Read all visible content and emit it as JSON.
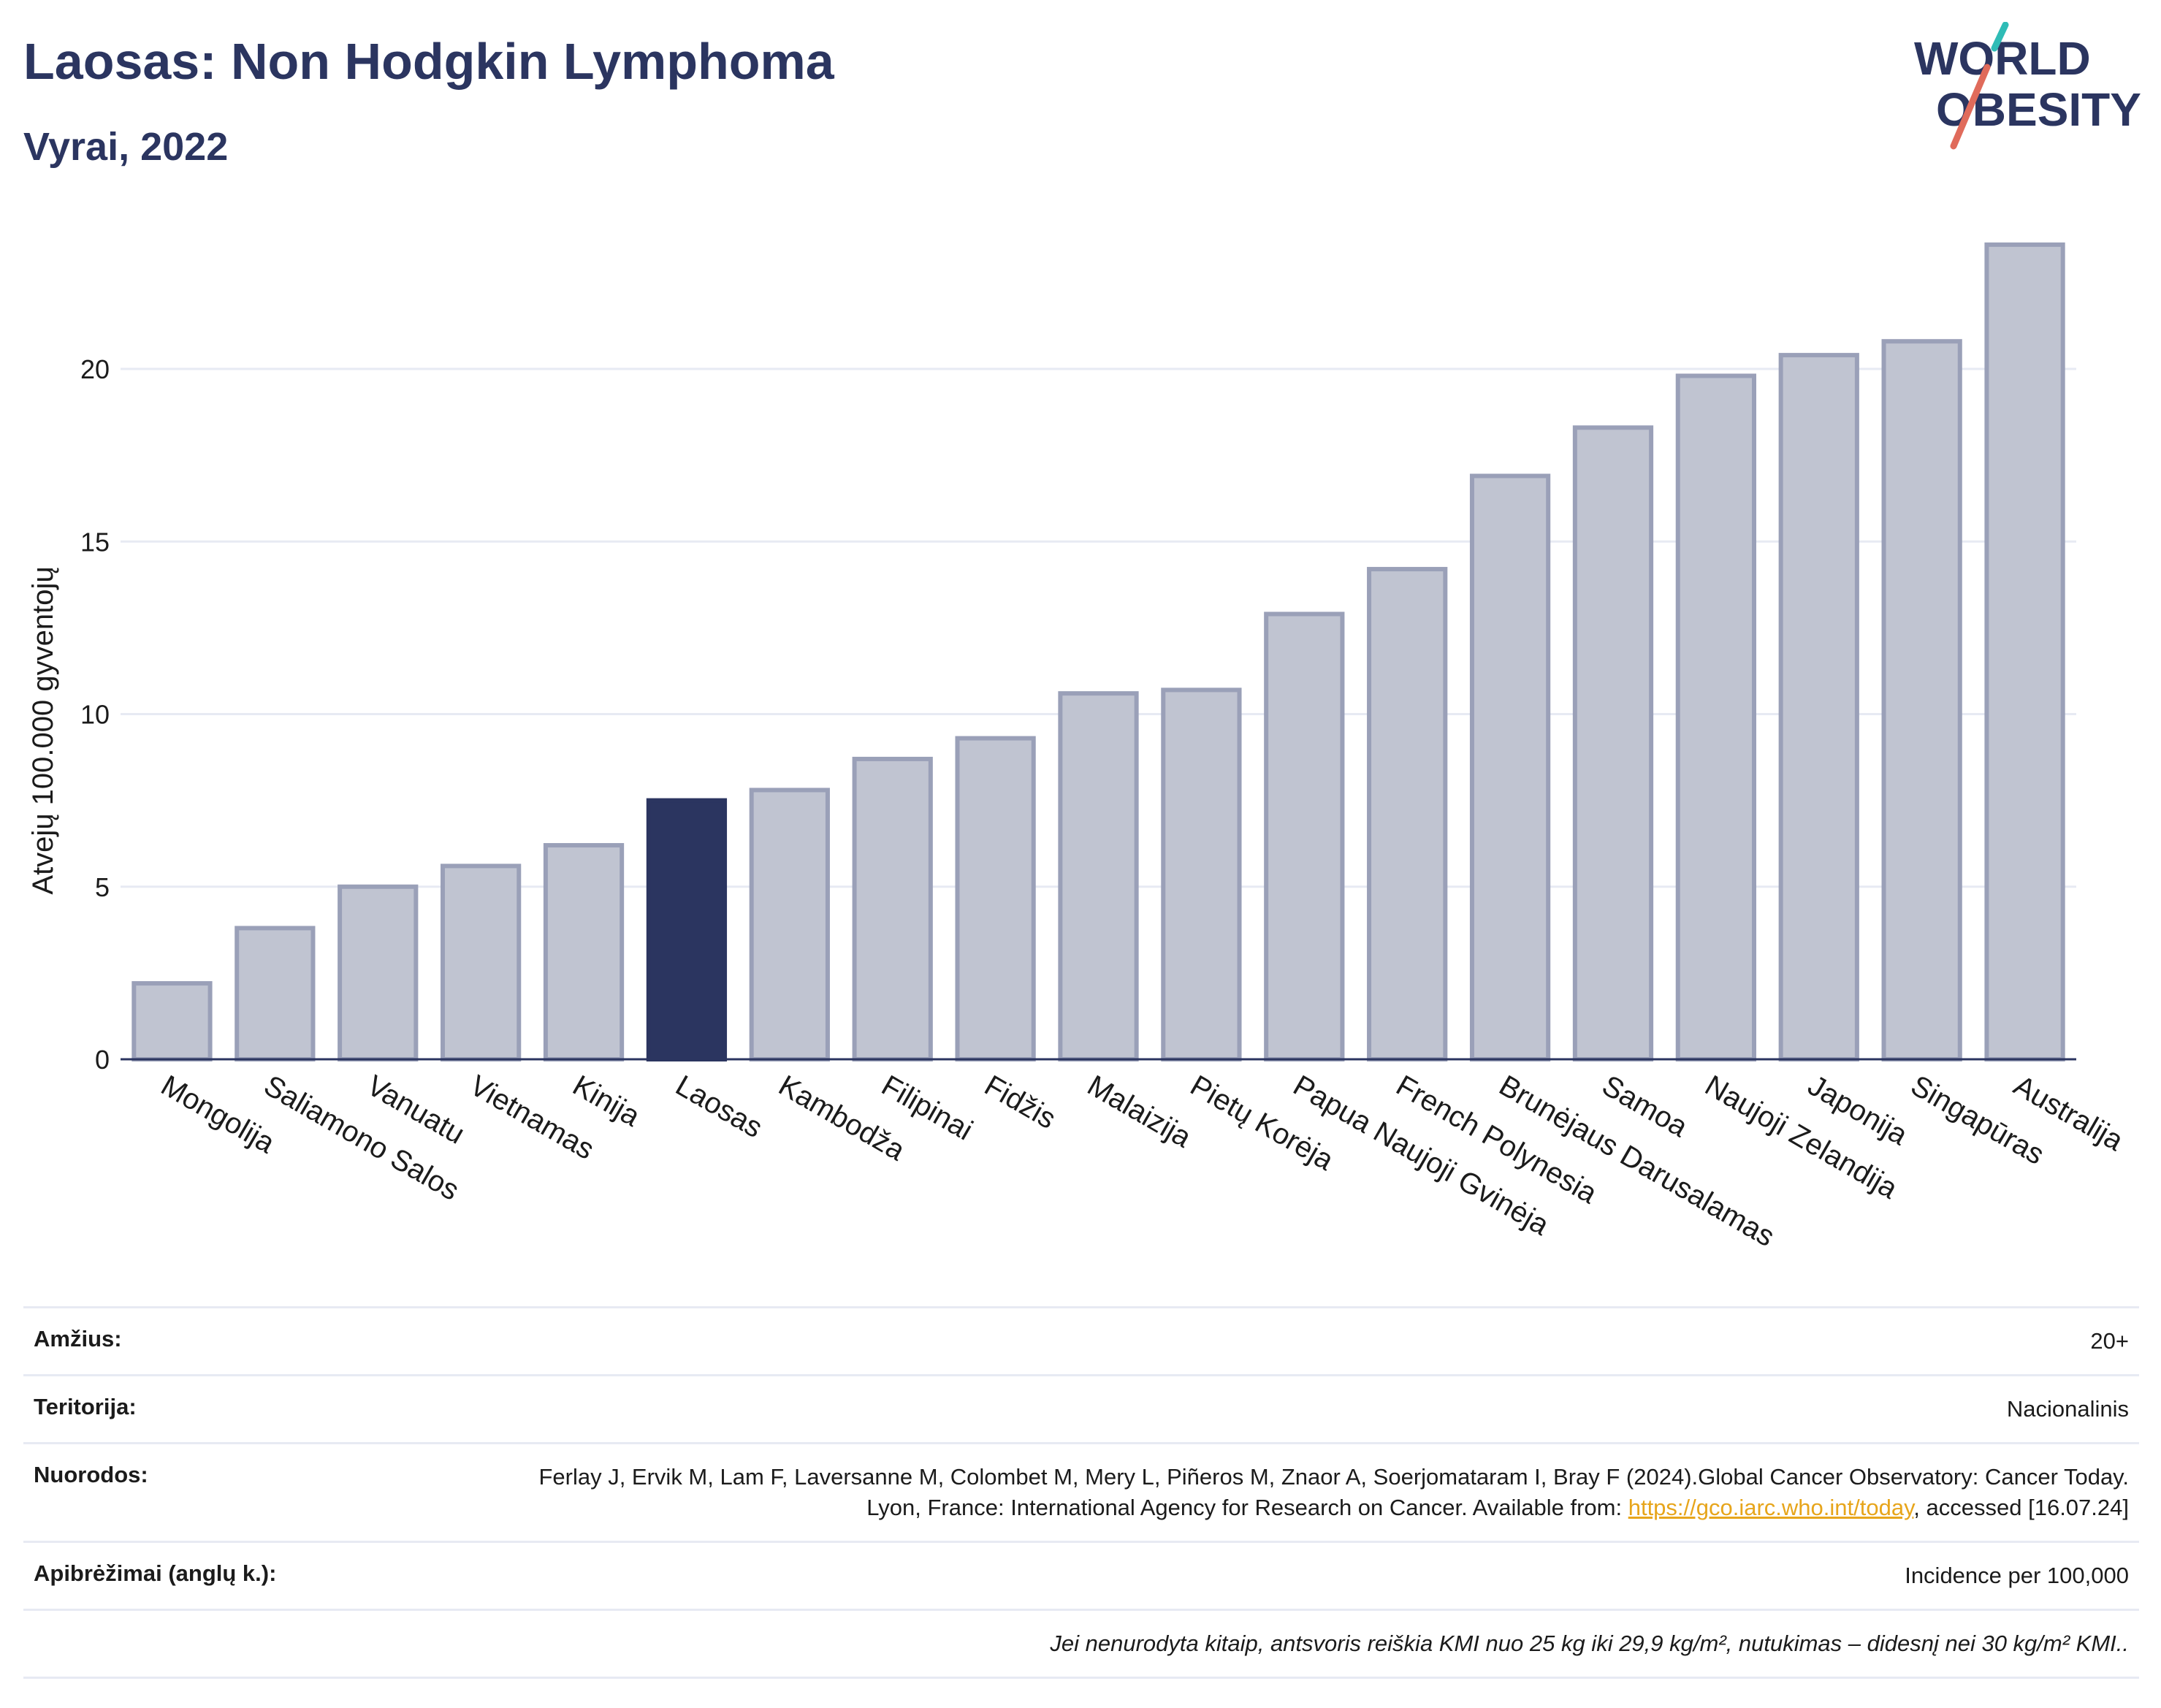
{
  "header": {
    "title": "Laosas: Non Hodgkin Lymphoma",
    "subtitle": "Vyrai, 2022"
  },
  "logo": {
    "line1": "WORLD",
    "line2": "OBESITY"
  },
  "chart_data": {
    "type": "bar",
    "ylabel": "Atvejų 100.000 gyventojų",
    "xlabel": "",
    "ylim": [
      0,
      25
    ],
    "yticks": [
      0,
      5,
      10,
      15,
      20
    ],
    "grid": true,
    "highlight": "Laosas",
    "colors": {
      "bar": "#c0c4d1",
      "bar_border": "#9aa0b8",
      "highlight": "#2b3560",
      "axis": "#2b3560",
      "grid": "#e7eaf3"
    },
    "categories": [
      "Mongolija",
      "Saliamono Salos",
      "Vanuatu",
      "Vietnamas",
      "Kinija",
      "Laosas",
      "Kambodža",
      "Filipinai",
      "Fidžis",
      "Malaizija",
      "Pietų Korėja",
      "Papua Naujoji Gvinėja",
      "French Polynesia",
      "Brunėjaus Darusalamas",
      "Samoa",
      "Naujoji Zelandija",
      "Japonija",
      "Singapūras",
      "Australija"
    ],
    "values": [
      2.2,
      3.8,
      5.0,
      5.6,
      6.2,
      7.5,
      7.8,
      8.7,
      9.3,
      10.6,
      10.7,
      12.9,
      14.2,
      16.9,
      18.3,
      19.8,
      20.4,
      20.8,
      23.6
    ]
  },
  "info": {
    "age_label": "Amžius:",
    "age_value": "20+",
    "territory_label": "Teritorija:",
    "territory_value": "Nacionalinis",
    "refs_label": "Nuorodos:",
    "refs_text_1": "Ferlay J, Ervik M, Lam F, Laversanne M, Colombet M, Mery L, Piñeros M, Znaor A, Soerjomataram I, Bray F (2024).Global Cancer Observatory: Cancer Today. Lyon, France: International Agency for Research on Cancer. Available from: ",
    "refs_link": "https://gco.iarc.who.int/today",
    "refs_text_2": ", accessed [16.07.24]",
    "defs_label": "Apibrėžimai (anglų k.):",
    "defs_value": "Incidence per 100,000",
    "note": "Jei nenurodyta kitaip, antsvoris reiškia KMI nuo 25 kg iki 29,9 kg/m², nutukimas – didesnį nei 30 kg/m² KMI.."
  }
}
